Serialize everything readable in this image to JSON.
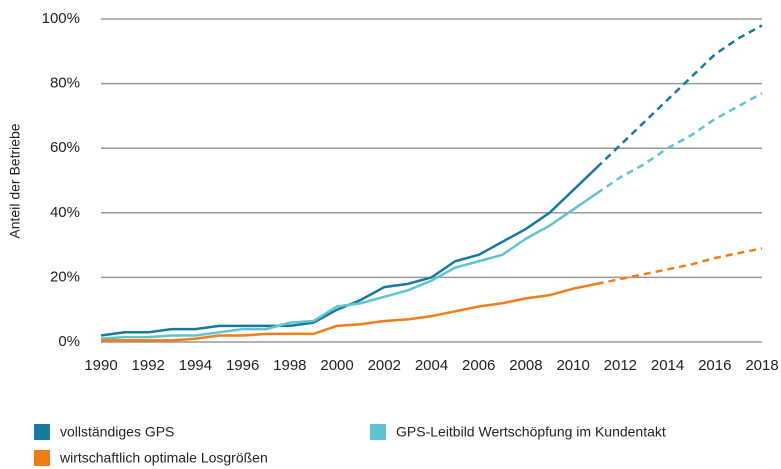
{
  "chart_data": {
    "type": "line",
    "y_label": "Anteil der Betriebe",
    "x": [
      1990,
      1991,
      1992,
      1993,
      1994,
      1995,
      1996,
      1997,
      1998,
      1999,
      2000,
      2001,
      2002,
      2003,
      2004,
      2005,
      2006,
      2007,
      2008,
      2009,
      2010,
      2011,
      2012,
      2013,
      2014,
      2015,
      2016,
      2017,
      2018
    ],
    "xlim": [
      1990,
      2018
    ],
    "xticks": [
      1990,
      1992,
      1994,
      1996,
      1998,
      2000,
      2002,
      2004,
      2006,
      2008,
      2010,
      2012,
      2014,
      2016,
      2018
    ],
    "ylim": [
      0,
      100
    ],
    "yticks": [
      {
        "value": 0,
        "label": "0%"
      },
      {
        "value": 20,
        "label": "20%"
      },
      {
        "value": 40,
        "label": "40%"
      },
      {
        "value": 60,
        "label": "60%"
      },
      {
        "value": 80,
        "label": "80%"
      },
      {
        "value": 100,
        "label": "100%"
      }
    ],
    "grid": true,
    "dashed_from": 2011,
    "series": [
      {
        "name": "vollständiges GPS",
        "color": "#17799c",
        "values": [
          2,
          3,
          3,
          4,
          4,
          5,
          5,
          5,
          5,
          6,
          10,
          13,
          17,
          18,
          20,
          25,
          27,
          31,
          35,
          40,
          47,
          54,
          61,
          68,
          75,
          82,
          89,
          94,
          98
        ]
      },
      {
        "name": "GPS-Leitbild Wertschöpfung im Kundentakt",
        "color": "#62c3cf",
        "values": [
          1,
          1.5,
          1.5,
          2,
          2,
          3,
          4,
          4,
          6,
          6.5,
          11,
          12,
          14,
          16,
          19,
          23,
          25,
          27,
          32,
          36,
          41,
          46,
          51,
          55,
          60,
          64,
          69,
          73,
          77
        ]
      },
      {
        "name": "wirtschaftlich optimale Losgrößen",
        "color": "#f07d1a",
        "values": [
          0.5,
          0.5,
          0.5,
          0.5,
          1,
          2,
          2,
          2.5,
          2.5,
          2.5,
          5,
          5.5,
          6.5,
          7,
          8,
          9.5,
          11,
          12,
          13.5,
          14.5,
          16.5,
          18,
          19.5,
          21,
          22.5,
          24,
          26,
          27.5,
          29
        ]
      }
    ]
  }
}
